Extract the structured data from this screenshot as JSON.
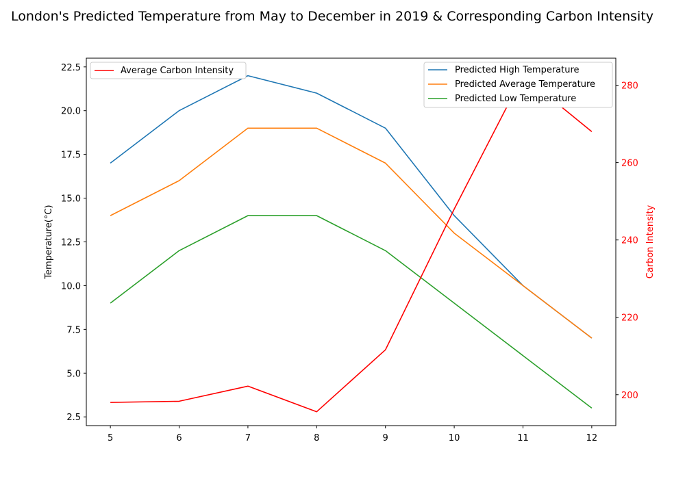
{
  "chart_data": {
    "type": "line",
    "title": "London's Predicted Temperature from May to December in 2019 & Corresponding Carbon Intensity",
    "xlabel": "",
    "ylabel": "Temperature(°C)",
    "ylabel_right": "Carbon Intensity",
    "x": [
      5,
      6,
      7,
      8,
      9,
      10,
      11,
      12
    ],
    "xticks": [
      "5",
      "6",
      "7",
      "8",
      "9",
      "10",
      "11",
      "12"
    ],
    "ylim": [
      2.0,
      23.0
    ],
    "yticks": [
      "2.5",
      "5.0",
      "7.5",
      "10.0",
      "12.5",
      "15.0",
      "17.5",
      "20.0",
      "22.5"
    ],
    "ylim_right": [
      192.0,
      287.0
    ],
    "yticks_right": [
      "200",
      "220",
      "240",
      "260",
      "280"
    ],
    "series": [
      {
        "name": "Predicted High Temperature",
        "axis": "left",
        "color": "#1f77b4",
        "values": [
          17,
          20,
          22,
          21,
          19,
          14,
          10,
          7
        ]
      },
      {
        "name": "Predicted Average Temperature",
        "axis": "left",
        "color": "#ff7f0e",
        "values": [
          14,
          16,
          19,
          19,
          17,
          13,
          10,
          7
        ]
      },
      {
        "name": "Predicted Low Temperature",
        "axis": "left",
        "color": "#2ca02c",
        "values": [
          9,
          12,
          14,
          14,
          12,
          9,
          6,
          3
        ]
      },
      {
        "name": "Average Carbon Intensity",
        "axis": "right",
        "color": "#ff0000",
        "values": [
          198,
          198.3,
          202.2,
          195.6,
          211.6,
          248,
          282.5,
          268
        ]
      }
    ],
    "legend_left_position": "top-left",
    "legend_right_position": "top-right",
    "grid": false
  }
}
